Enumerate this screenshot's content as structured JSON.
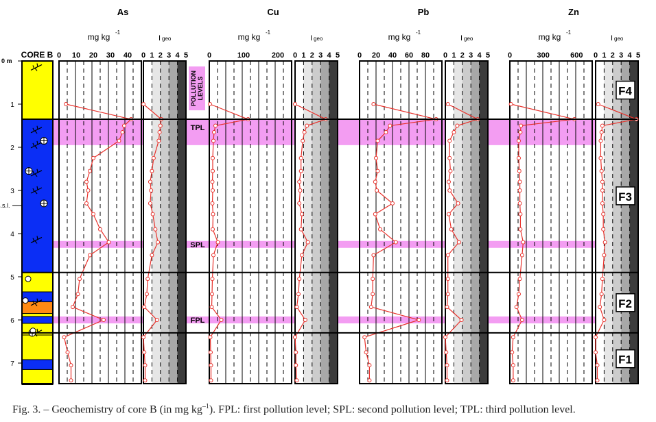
{
  "figure": {
    "caption_main": "Fig. 3. – Geochemistry of core B (in mg kg",
    "caption_sup": "–1",
    "caption_tail": "). FPL: first pollution level; SPL: second pollution level; TPL: third pollution level."
  },
  "chart_data": {
    "type": "line",
    "core_label": "CORE B",
    "depth_unit_label": "0 m",
    "sea_level_label": "s.s.l.",
    "depth_ticks": [
      "1",
      "2",
      "3",
      "4",
      "5",
      "6",
      "7"
    ],
    "depth_range": [
      0,
      7.5
    ],
    "pollution_levels_title": "POLLUTION LEVELS",
    "pollution_levels": [
      {
        "label": "TPL",
        "from": 1.35,
        "to": 1.95
      },
      {
        "label": "SPL",
        "from": 4.17,
        "to": 4.33
      },
      {
        "label": "FPL",
        "from": 5.92,
        "to": 6.08
      }
    ],
    "facies": [
      {
        "label": "F4",
        "from": 0,
        "to": 1.35
      },
      {
        "label": "F3",
        "from": 1.35,
        "to": 4.9
      },
      {
        "label": "F2",
        "from": 4.9,
        "to": 6.3
      },
      {
        "label": "F1",
        "from": 6.3,
        "to": 7.5
      }
    ],
    "concentration_unit": "mg kg",
    "concentration_unit_sup": "-1",
    "igeo_label_main": "I",
    "igeo_label_sub": "geo",
    "igeo_ticks": [
      "0",
      "1",
      "2",
      "3",
      "4",
      "5"
    ],
    "igeo_range": [
      0,
      5
    ],
    "depths": [
      1.0,
      1.35,
      1.5,
      1.65,
      1.85,
      2.25,
      2.55,
      2.8,
      3.0,
      3.3,
      3.55,
      3.9,
      4.2,
      4.5,
      5.05,
      5.4,
      5.7,
      6.0,
      6.4,
      6.75,
      7.05,
      7.4
    ],
    "elements": [
      {
        "name": "As",
        "ticks": [
          "0",
          "10",
          "20",
          "30",
          "40"
        ],
        "xlim": [
          0,
          48
        ],
        "conc": [
          4,
          42,
          38,
          37,
          35,
          20,
          18,
          16,
          17,
          16,
          20,
          24,
          29,
          18,
          12,
          11,
          8,
          26,
          3,
          5,
          7,
          7
        ],
        "igeo": [
          0,
          2.1,
          2.0,
          1.9,
          1.8,
          1.2,
          1.0,
          0.8,
          0.9,
          0.8,
          1.1,
          1.4,
          1.7,
          1.0,
          0.5,
          0.4,
          0.1,
          1.6,
          0,
          0.1,
          0.2,
          0.2
        ]
      },
      {
        "name": "Cu",
        "ticks": [
          "0",
          "100",
          "200"
        ],
        "xlim": [
          0,
          240
        ],
        "conc": [
          2,
          113,
          18,
          14,
          12,
          10,
          10,
          9,
          10,
          9,
          11,
          10,
          25,
          12,
          9,
          8,
          7,
          35,
          3,
          4,
          5,
          5
        ],
        "igeo": [
          0,
          3.6,
          1.4,
          1.1,
          0.9,
          0.7,
          0.7,
          0.5,
          0.6,
          0.5,
          0.8,
          0.7,
          1.5,
          0.8,
          0.5,
          0.4,
          0.2,
          1.2,
          0,
          0.1,
          0.1,
          0.2
        ]
      },
      {
        "name": "Pb",
        "ticks": [
          "0",
          "20",
          "40",
          "60",
          "80"
        ],
        "xlim": [
          0,
          100
        ],
        "conc": [
          17,
          93,
          37,
          32,
          22,
          20,
          22,
          19,
          21,
          40,
          19,
          25,
          44,
          17,
          16,
          16,
          14,
          72,
          6,
          8,
          12,
          12
        ],
        "igeo": [
          0.3,
          3.8,
          1.4,
          1.0,
          0.5,
          0.5,
          0.6,
          0.4,
          0.5,
          1.5,
          0.4,
          0.7,
          1.6,
          0.3,
          0.3,
          0.3,
          0.2,
          1.9,
          0,
          0.1,
          0.2,
          0.2
        ]
      },
      {
        "name": "Zn",
        "ticks": [
          "0",
          "300",
          "600"
        ],
        "xlim": [
          0,
          740
        ],
        "conc": [
          10,
          580,
          100,
          95,
          80,
          80,
          85,
          90,
          90,
          90,
          95,
          95,
          120,
          110,
          90,
          80,
          60,
          110,
          30,
          20,
          30,
          30
        ],
        "igeo": [
          0.3,
          4.8,
          0.8,
          0.7,
          0.6,
          0.6,
          0.7,
          0.8,
          0.8,
          0.8,
          0.9,
          0.9,
          1.1,
          1.0,
          0.8,
          0.7,
          0.5,
          1.0,
          0,
          0,
          0.2,
          0.2
        ]
      }
    ],
    "colors": {
      "line": "#e8312b",
      "pollution_band": "#f39df2",
      "lithology_sand": "#ffff00",
      "lithology_clay": "#0b2ef5",
      "lithology_silt": "#ff8a14",
      "igeo_shades": [
        "#ffffff",
        "#e6e6e6",
        "#cccccc",
        "#a8a8a8",
        "#7d7d7d",
        "#3c3c3c"
      ]
    }
  }
}
